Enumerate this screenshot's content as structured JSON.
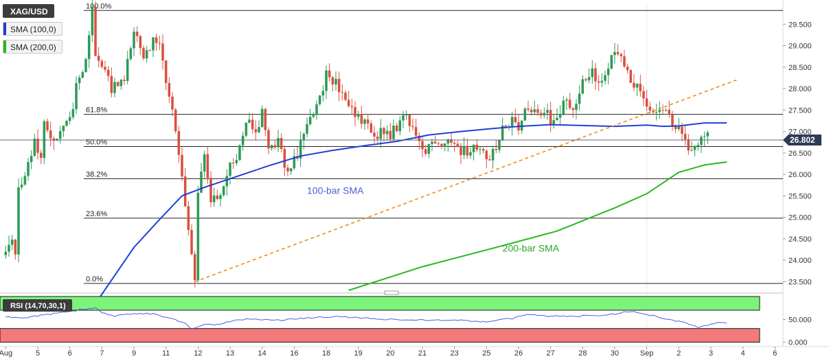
{
  "header": {
    "symbol": "XAG/USD",
    "sma100": "SMA (100,0)",
    "sma200": "SMA (200,0)"
  },
  "rsi_label": "RSI (14,70,30,1)",
  "last_price_label": "26.802",
  "colors": {
    "up": "#2e9a57",
    "down": "#d9503f",
    "sma100": "#1f3fd6",
    "sma200": "#26b81e",
    "trendline": "#f08a1c",
    "fib": "#222222",
    "rsi_over": "#7cf47a",
    "rsi_under": "#f27a7a",
    "rsi_line": "#4a5fd9",
    "price_tag": "#2e3a55"
  },
  "chart_data": [
    {
      "type": "candlestick",
      "title": "XAG/USD",
      "ylim": [
        23.3,
        30.0
      ],
      "y_ticks": [
        "29.500",
        "29.000",
        "28.500",
        "28.000",
        "27.500",
        "27.000",
        "26.500",
        "26.000",
        "25.500",
        "25.000",
        "24.500",
        "24.000",
        "23.500"
      ],
      "x_labels": [
        {
          "label": "Aug",
          "bar": 0
        },
        {
          "label": "5",
          "bar": 10
        },
        {
          "label": "6",
          "bar": 20
        },
        {
          "label": "7",
          "bar": 30
        },
        {
          "label": "9",
          "bar": 40
        },
        {
          "label": "11",
          "bar": 50
        },
        {
          "label": "12",
          "bar": 60
        },
        {
          "label": "13",
          "bar": 70
        },
        {
          "label": "14",
          "bar": 80
        },
        {
          "label": "16",
          "bar": 90
        },
        {
          "label": "18",
          "bar": 100
        },
        {
          "label": "19",
          "bar": 110
        },
        {
          "label": "20",
          "bar": 120
        },
        {
          "label": "21",
          "bar": 130
        },
        {
          "label": "23",
          "bar": 140
        },
        {
          "label": "25",
          "bar": 150
        },
        {
          "label": "26",
          "bar": 160
        },
        {
          "label": "27",
          "bar": 170
        },
        {
          "label": "28",
          "bar": 180
        },
        {
          "label": "30",
          "bar": 190
        },
        {
          "label": "Sep",
          "bar": 200
        },
        {
          "label": "2",
          "bar": 210
        },
        {
          "label": "3",
          "bar": 220
        },
        {
          "label": "4",
          "bar": 230
        },
        {
          "label": "6",
          "bar": 240
        }
      ],
      "anchors": [
        [
          0,
          24.3
        ],
        [
          2,
          24.4
        ],
        [
          3,
          24.1
        ],
        [
          4,
          25.7
        ],
        [
          6,
          26.1
        ],
        [
          9,
          26.8
        ],
        [
          11,
          26.3
        ],
        [
          12,
          27.1
        ],
        [
          14,
          26.8
        ],
        [
          17,
          27.0
        ],
        [
          20,
          27.2
        ],
        [
          22,
          28.1
        ],
        [
          25,
          28.6
        ],
        [
          27,
          29.8
        ],
        [
          28,
          28.9
        ],
        [
          30,
          28.5
        ],
        [
          33,
          28.0
        ],
        [
          37,
          28.3
        ],
        [
          40,
          29.3
        ],
        [
          43,
          28.8
        ],
        [
          47,
          29.2
        ],
        [
          49,
          28.7
        ],
        [
          52,
          27.4
        ],
        [
          55,
          26.0
        ],
        [
          57,
          24.6
        ],
        [
          59,
          23.6
        ],
        [
          60,
          25.5
        ],
        [
          62,
          26.4
        ],
        [
          64,
          25.3
        ],
        [
          67,
          25.6
        ],
        [
          70,
          26.2
        ],
        [
          73,
          26.6
        ],
        [
          75,
          27.3
        ],
        [
          78,
          26.9
        ],
        [
          80,
          27.5
        ],
        [
          82,
          26.7
        ],
        [
          85,
          26.8
        ],
        [
          88,
          26.0
        ],
        [
          91,
          26.5
        ],
        [
          94,
          27.1
        ],
        [
          97,
          27.6
        ],
        [
          100,
          28.3
        ],
        [
          103,
          28.2
        ],
        [
          106,
          27.6
        ],
        [
          109,
          27.4
        ],
        [
          112,
          27.2
        ],
        [
          115,
          26.8
        ],
        [
          117,
          27.1
        ],
        [
          120,
          26.9
        ],
        [
          123,
          27.2
        ],
        [
          125,
          27.4
        ],
        [
          127,
          27.1
        ],
        [
          130,
          26.5
        ],
        [
          133,
          26.8
        ],
        [
          136,
          26.6
        ],
        [
          138,
          26.9
        ],
        [
          141,
          26.6
        ],
        [
          144,
          26.5
        ],
        [
          147,
          26.7
        ],
        [
          150,
          26.3
        ],
        [
          153,
          26.6
        ],
        [
          155,
          27.1
        ],
        [
          158,
          27.3
        ],
        [
          160,
          27.1
        ],
        [
          163,
          27.6
        ],
        [
          166,
          27.3
        ],
        [
          168,
          27.5
        ],
        [
          171,
          27.2
        ],
        [
          174,
          27.7
        ],
        [
          177,
          27.6
        ],
        [
          180,
          28.1
        ],
        [
          183,
          28.4
        ],
        [
          186,
          28.1
        ],
        [
          188,
          28.6
        ],
        [
          191,
          28.8
        ],
        [
          193,
          28.5
        ],
        [
          196,
          28.1
        ],
        [
          199,
          27.8
        ],
        [
          202,
          27.5
        ],
        [
          205,
          27.6
        ],
        [
          207,
          27.3
        ],
        [
          210,
          27.1
        ],
        [
          212,
          26.7
        ],
        [
          214,
          26.6
        ],
        [
          216,
          26.7
        ],
        [
          218,
          26.9
        ],
        [
          220,
          26.8
        ]
      ],
      "series": [
        {
          "name": "100-bar SMA",
          "values": [
            [
              29,
              23.1
            ],
            [
              40,
              24.3
            ],
            [
              48,
              24.95
            ],
            [
              55,
              25.5
            ],
            [
              62,
              25.7
            ],
            [
              72,
              25.95
            ],
            [
              82,
              26.2
            ],
            [
              92,
              26.43
            ],
            [
              102,
              26.56
            ],
            [
              112,
              26.67
            ],
            [
              122,
              26.77
            ],
            [
              132,
              26.92
            ],
            [
              142,
              27.0
            ],
            [
              152,
              27.07
            ],
            [
              160,
              27.12
            ],
            [
              170,
              27.16
            ],
            [
              180,
              27.14
            ],
            [
              190,
              27.12
            ],
            [
              200,
              27.15
            ],
            [
              205,
              27.12
            ],
            [
              210,
              27.13
            ],
            [
              218,
              27.2
            ],
            [
              225,
              27.2
            ]
          ]
        },
        {
          "name": "200-bar SMA",
          "values": [
            [
              107,
              23.3
            ],
            [
              130,
              23.85
            ],
            [
              152,
              24.28
            ],
            [
              172,
              24.68
            ],
            [
              190,
              25.22
            ],
            [
              200,
              25.55
            ],
            [
              210,
              26.05
            ],
            [
              218,
              26.22
            ],
            [
              225,
              26.29
            ]
          ]
        }
      ],
      "trendline": [
        [
          59,
          23.5
        ],
        [
          228,
          28.2
        ]
      ],
      "fibonacci": [
        {
          "label": "100.0%",
          "value": 29.82
        },
        {
          "label": "61.8%",
          "value": 27.4
        },
        {
          "label": "50.0%",
          "value": 26.65
        },
        {
          "label": "38.2%",
          "value": 25.9
        },
        {
          "label": "23.6%",
          "value": 24.98
        },
        {
          "label": "0.0%",
          "value": 23.46
        }
      ],
      "annotations": [
        {
          "text": "100-bar SMA",
          "bar": 94,
          "value": 25.55
        },
        {
          "text": "200-bar SMA",
          "bar": 155,
          "value": 24.2
        }
      ],
      "last_price": 26.802
    },
    {
      "type": "line",
      "title": "RSI (14,70,30,1)",
      "ylim": [
        -5,
        100
      ],
      "y_ticks": [
        "50.000",
        "0.000"
      ],
      "bands": {
        "overbought": 70,
        "oversold": 30
      },
      "anchors": [
        [
          0,
          55
        ],
        [
          6,
          54
        ],
        [
          12,
          60
        ],
        [
          18,
          65
        ],
        [
          24,
          72
        ],
        [
          28,
          75
        ],
        [
          30,
          64
        ],
        [
          34,
          57
        ],
        [
          40,
          63
        ],
        [
          46,
          62
        ],
        [
          50,
          55
        ],
        [
          56,
          42
        ],
        [
          58,
          28
        ],
        [
          62,
          40
        ],
        [
          66,
          38
        ],
        [
          70,
          46
        ],
        [
          76,
          51
        ],
        [
          80,
          50
        ],
        [
          86,
          48
        ],
        [
          92,
          52
        ],
        [
          98,
          55
        ],
        [
          104,
          56
        ],
        [
          110,
          54
        ],
        [
          116,
          50
        ],
        [
          122,
          50
        ],
        [
          128,
          49
        ],
        [
          134,
          48
        ],
        [
          140,
          48
        ],
        [
          146,
          47
        ],
        [
          150,
          44
        ],
        [
          154,
          50
        ],
        [
          158,
          51
        ],
        [
          160,
          58
        ],
        [
          164,
          60
        ],
        [
          168,
          57
        ],
        [
          172,
          58
        ],
        [
          178,
          56
        ],
        [
          182,
          60
        ],
        [
          186,
          59
        ],
        [
          190,
          62
        ],
        [
          193,
          67
        ],
        [
          196,
          68
        ],
        [
          199,
          62
        ],
        [
          202,
          58
        ],
        [
          205,
          52
        ],
        [
          208,
          48
        ],
        [
          212,
          44
        ],
        [
          214,
          37
        ],
        [
          216,
          33
        ],
        [
          218,
          35
        ],
        [
          220,
          40
        ],
        [
          222,
          43
        ],
        [
          225,
          42
        ]
      ]
    }
  ]
}
